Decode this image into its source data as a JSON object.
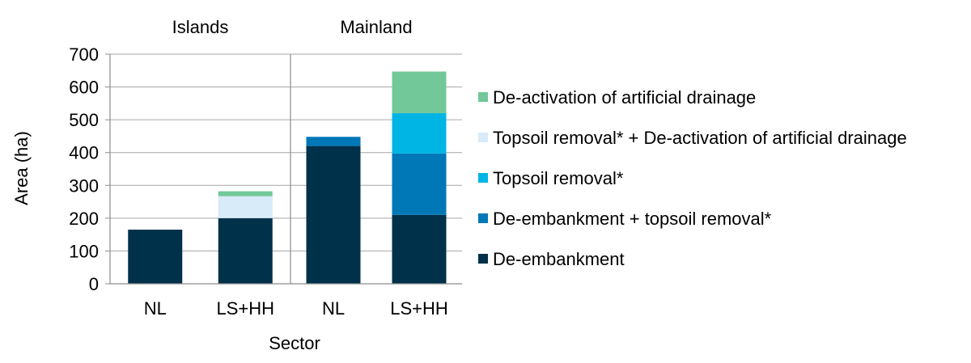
{
  "chart_data": {
    "type": "bar",
    "stacked": true,
    "panels": [
      "Islands",
      "Mainland"
    ],
    "categories": [
      "NL",
      "LS+HH"
    ],
    "xlabel": "Sector",
    "ylabel": "Area (ha)",
    "ylim": [
      0,
      700
    ],
    "yticks": [
      0,
      100,
      200,
      300,
      400,
      500,
      600,
      700
    ],
    "grid": true,
    "legend_position": "right",
    "series": [
      {
        "name": "De-embankment",
        "color": "#00314a",
        "values": {
          "Islands": [
            165,
            200
          ],
          "Mainland": [
            420,
            210
          ]
        }
      },
      {
        "name": "De-embankment + topsoil removal*",
        "color": "#0077b6",
        "values": {
          "Islands": [
            0,
            0
          ],
          "Mainland": [
            28,
            187
          ]
        }
      },
      {
        "name": "Topsoil removal*",
        "color": "#00b4e4",
        "values": {
          "Islands": [
            0,
            0
          ],
          "Mainland": [
            0,
            123
          ]
        }
      },
      {
        "name": "Topsoil removal* + De-activation of artificial drainage",
        "color": "#d7ebf9",
        "values": {
          "Islands": [
            0,
            67
          ],
          "Mainland": [
            0,
            0
          ]
        }
      },
      {
        "name": "De-activation of artificial drainage",
        "color": "#72c898",
        "values": {
          "Islands": [
            0,
            15
          ],
          "Mainland": [
            0,
            127
          ]
        }
      }
    ]
  }
}
